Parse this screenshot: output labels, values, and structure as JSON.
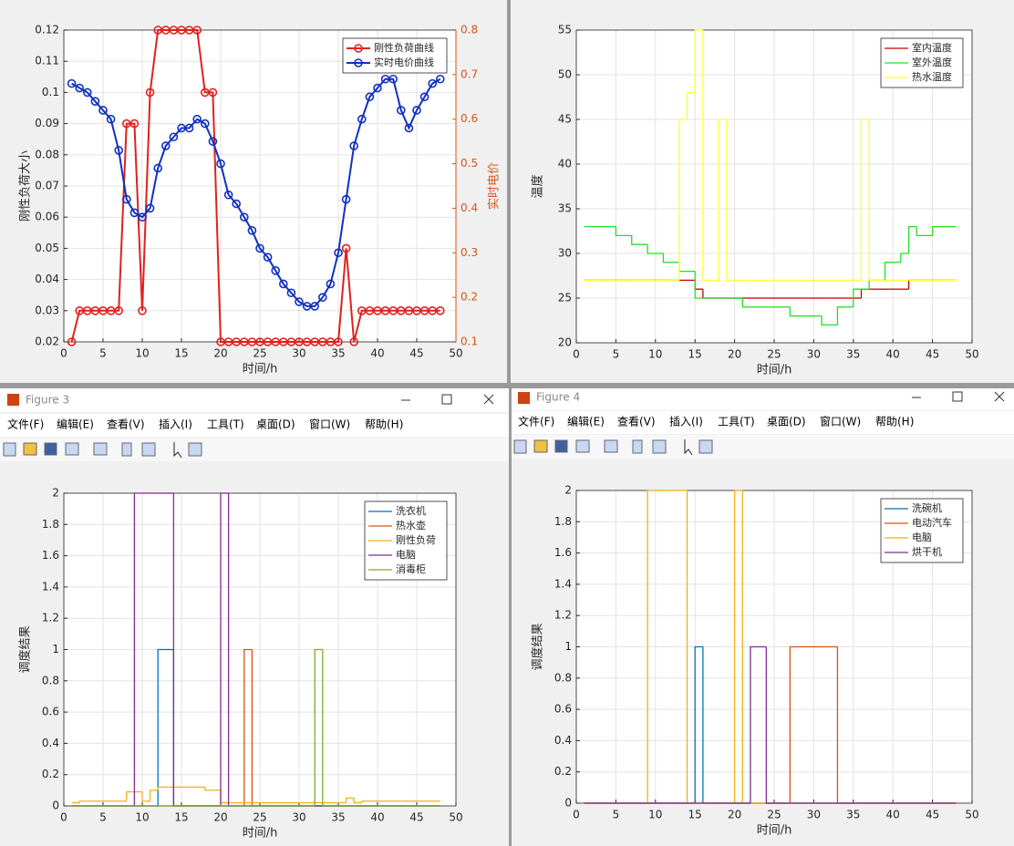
{
  "windows": [
    {
      "title": "Figure 3",
      "menu": [
        "文件(F)",
        "编辑(E)",
        "查看(V)",
        "插入(I)",
        "工具(T)",
        "桌面(D)",
        "窗口(W)",
        "帮助(H)"
      ]
    },
    {
      "title": "Figure 4",
      "menu": [
        "文件(F)",
        "编辑(E)",
        "查看(V)",
        "插入(I)",
        "工具(T)",
        "桌面(D)",
        "窗口(W)",
        "帮助(H)"
      ]
    }
  ],
  "chart_data": [
    {
      "type": "line",
      "marker": "o",
      "xlabel": "时间/h",
      "ylabel": "刚性负荷大小",
      "y2label": "实时电价",
      "y2color": "#d95319",
      "x": [
        1,
        2,
        3,
        4,
        5,
        6,
        7,
        8,
        9,
        10,
        11,
        12,
        13,
        14,
        15,
        16,
        17,
        18,
        19,
        20,
        21,
        22,
        23,
        24,
        25,
        26,
        27,
        28,
        29,
        30,
        31,
        32,
        33,
        34,
        35,
        36,
        37,
        38,
        39,
        40,
        41,
        42,
        43,
        44,
        45,
        46,
        47,
        48
      ],
      "xlim": [
        0,
        50
      ],
      "xticks": [
        0,
        5,
        10,
        15,
        20,
        25,
        30,
        35,
        40,
        45,
        50
      ],
      "ylim": [
        0.02,
        0.12
      ],
      "yticks": [
        0.02,
        0.03,
        0.04,
        0.05,
        0.06,
        0.07,
        0.08,
        0.09,
        0.1,
        0.11,
        0.12
      ],
      "y2lim": [
        0.1,
        0.8
      ],
      "y2ticks": [
        0.1,
        0.2,
        0.3,
        0.4,
        0.5,
        0.6,
        0.7,
        0.8
      ],
      "grid": true,
      "legend": "northeast",
      "series": [
        {
          "name": "刚性负荷曲线",
          "color": "#e02020",
          "values": [
            0.02,
            0.03,
            0.03,
            0.03,
            0.03,
            0.03,
            0.03,
            0.09,
            0.09,
            0.03,
            0.1,
            0.12,
            0.12,
            0.12,
            0.12,
            0.12,
            0.12,
            0.1,
            0.1,
            0.02,
            0.02,
            0.02,
            0.02,
            0.02,
            0.02,
            0.02,
            0.02,
            0.02,
            0.02,
            0.02,
            0.02,
            0.02,
            0.02,
            0.02,
            0.02,
            0.05,
            0.02,
            0.03,
            0.03,
            0.03,
            0.03,
            0.03,
            0.03,
            0.03,
            0.03,
            0.03,
            0.03,
            0.03
          ]
        },
        {
          "name": "实时电价曲线",
          "color": "#1030c0",
          "axis": "y2",
          "values": [
            0.68,
            0.67,
            0.66,
            0.64,
            0.62,
            0.6,
            0.53,
            0.42,
            0.39,
            0.38,
            0.4,
            0.49,
            0.54,
            0.56,
            0.58,
            0.58,
            0.6,
            0.59,
            0.55,
            0.5,
            0.43,
            0.41,
            0.38,
            0.35,
            0.31,
            0.29,
            0.26,
            0.23,
            0.21,
            0.19,
            0.18,
            0.18,
            0.2,
            0.23,
            0.3,
            0.42,
            0.54,
            0.6,
            0.65,
            0.67,
            0.69,
            0.69,
            0.62,
            0.58,
            0.62,
            0.65,
            0.68,
            0.69
          ]
        }
      ]
    },
    {
      "type": "line",
      "step": true,
      "xlabel": "时间/h",
      "ylabel": "温度",
      "x": [
        1,
        2,
        3,
        4,
        5,
        6,
        7,
        8,
        9,
        10,
        11,
        12,
        13,
        14,
        15,
        16,
        17,
        18,
        19,
        20,
        21,
        22,
        23,
        24,
        25,
        26,
        27,
        28,
        29,
        30,
        31,
        32,
        33,
        34,
        35,
        36,
        37,
        38,
        39,
        40,
        41,
        42,
        43,
        44,
        45,
        46,
        47,
        48
      ],
      "xlim": [
        0,
        50
      ],
      "xticks": [
        0,
        5,
        10,
        15,
        20,
        25,
        30,
        35,
        40,
        45,
        50
      ],
      "ylim": [
        20,
        55
      ],
      "yticks": [
        20,
        25,
        30,
        35,
        40,
        45,
        50,
        55
      ],
      "grid": true,
      "legend": "northeast",
      "series": [
        {
          "name": "室内温度",
          "color": "#cc0000",
          "values": [
            27,
            27,
            27,
            27,
            27,
            27,
            27,
            27,
            27,
            27,
            27,
            27,
            27,
            27,
            26,
            25,
            25,
            25,
            25,
            25,
            25,
            25,
            25,
            25,
            25,
            25,
            25,
            25,
            25,
            25,
            25,
            25,
            25,
            25,
            25,
            26,
            26,
            26,
            26,
            26,
            26,
            27,
            27,
            27,
            27,
            27,
            27,
            27
          ]
        },
        {
          "name": "室外温度",
          "color": "#22e022",
          "values": [
            33,
            33,
            33,
            33,
            32,
            32,
            31,
            31,
            30,
            30,
            29,
            29,
            28,
            28,
            25,
            25,
            25,
            25,
            25,
            25,
            24,
            24,
            24,
            24,
            24,
            24,
            23,
            23,
            23,
            23,
            22,
            22,
            24,
            24,
            26,
            26,
            27,
            27,
            29,
            29,
            30,
            33,
            32,
            32,
            33,
            33,
            33,
            33
          ]
        },
        {
          "name": "热水温度",
          "color": "#ffff30",
          "values": [
            27,
            27,
            27,
            27,
            27,
            27,
            27,
            27,
            27,
            27,
            27,
            27,
            45,
            48,
            55,
            27,
            27,
            45,
            27,
            27,
            27,
            27,
            27,
            27,
            27,
            27,
            27,
            27,
            27,
            27,
            27,
            27,
            27,
            27,
            27,
            45,
            27,
            27,
            27,
            27,
            27,
            27,
            27,
            27,
            27,
            27,
            27,
            27
          ]
        }
      ]
    },
    {
      "type": "line",
      "step": true,
      "xlabel": "时间/h",
      "ylabel": "调度结果",
      "x": [
        1,
        2,
        3,
        4,
        5,
        6,
        7,
        8,
        9,
        10,
        11,
        12,
        13,
        14,
        15,
        16,
        17,
        18,
        19,
        20,
        21,
        22,
        23,
        24,
        25,
        26,
        27,
        28,
        29,
        30,
        31,
        32,
        33,
        34,
        35,
        36,
        37,
        38,
        39,
        40,
        41,
        42,
        43,
        44,
        45,
        46,
        47,
        48
      ],
      "xlim": [
        0,
        50
      ],
      "xticks": [
        0,
        5,
        10,
        15,
        20,
        25,
        30,
        35,
        40,
        45,
        50
      ],
      "ylim": [
        0,
        2
      ],
      "yticks": [
        0,
        0.2,
        0.4,
        0.6,
        0.8,
        1,
        1.2,
        1.4,
        1.6,
        1.8,
        2
      ],
      "grid": true,
      "legend": "northeast",
      "series": [
        {
          "name": "洗衣机",
          "color": "#0072bd",
          "values": [
            0,
            0,
            0,
            0,
            0,
            0,
            0,
            0,
            0,
            0,
            0,
            1,
            1,
            0,
            0,
            0,
            0,
            0,
            0,
            0,
            0,
            0,
            0,
            0,
            0,
            0,
            0,
            0,
            0,
            0,
            0,
            0,
            0,
            0,
            0,
            0,
            0,
            0,
            0,
            0,
            0,
            0,
            0,
            0,
            0,
            0,
            0,
            0
          ]
        },
        {
          "name": "热水壶",
          "color": "#d95319",
          "values": [
            0,
            0,
            0,
            0,
            0,
            0,
            0,
            0,
            0,
            0,
            0,
            0,
            0,
            0,
            0,
            0,
            0,
            0,
            0,
            0,
            0,
            0,
            1,
            0,
            0,
            0,
            0,
            0,
            0,
            0,
            0,
            0,
            0,
            0,
            0,
            0,
            0,
            0,
            0,
            0,
            0,
            0,
            0,
            0,
            0,
            0,
            0,
            0
          ]
        },
        {
          "name": "刚性负荷",
          "color": "#edb120",
          "values": [
            0.02,
            0.03,
            0.03,
            0.03,
            0.03,
            0.03,
            0.03,
            0.09,
            0.09,
            0.03,
            0.1,
            0.12,
            0.12,
            0.12,
            0.12,
            0.12,
            0.12,
            0.1,
            0.1,
            0.02,
            0.02,
            0.02,
            0.02,
            0.02,
            0.02,
            0.02,
            0.02,
            0.02,
            0.02,
            0.02,
            0.02,
            0.02,
            0.02,
            0.02,
            0.02,
            0.05,
            0.02,
            0.03,
            0.03,
            0.03,
            0.03,
            0.03,
            0.03,
            0.03,
            0.03,
            0.03,
            0.03,
            0.03
          ]
        },
        {
          "name": "电脑",
          "color": "#7e2f8e",
          "values": [
            0,
            0,
            0,
            0,
            0,
            0,
            0,
            0,
            2,
            2,
            2,
            2,
            2,
            0,
            0,
            0,
            0,
            0,
            0,
            2,
            0,
            0,
            0,
            0,
            0,
            0,
            0,
            0,
            0,
            0,
            0,
            0,
            0,
            0,
            0,
            0,
            0,
            0,
            0,
            0,
            0,
            0,
            0,
            0,
            0,
            0,
            0,
            0
          ]
        },
        {
          "name": "消毒柜",
          "color": "#77ac30",
          "values": [
            0,
            0,
            0,
            0,
            0,
            0,
            0,
            0,
            0,
            0,
            0,
            0,
            0,
            0,
            0,
            0,
            0,
            0,
            0,
            0,
            0,
            0,
            0,
            0,
            0,
            0,
            0,
            0,
            0,
            0,
            0,
            1,
            0,
            0,
            0,
            0,
            0,
            0,
            0,
            0,
            0,
            0,
            0,
            0,
            0,
            0,
            0,
            0
          ]
        }
      ]
    },
    {
      "type": "line",
      "step": true,
      "xlabel": "时间/h",
      "ylabel": "调度结果",
      "x": [
        1,
        2,
        3,
        4,
        5,
        6,
        7,
        8,
        9,
        10,
        11,
        12,
        13,
        14,
        15,
        16,
        17,
        18,
        19,
        20,
        21,
        22,
        23,
        24,
        25,
        26,
        27,
        28,
        29,
        30,
        31,
        32,
        33,
        34,
        35,
        36,
        37,
        38,
        39,
        40,
        41,
        42,
        43,
        44,
        45,
        46,
        47,
        48
      ],
      "xlim": [
        0,
        50
      ],
      "xticks": [
        0,
        5,
        10,
        15,
        20,
        25,
        30,
        35,
        40,
        45,
        50
      ],
      "ylim": [
        0,
        2
      ],
      "yticks": [
        0,
        0.2,
        0.4,
        0.6,
        0.8,
        1,
        1.2,
        1.4,
        1.6,
        1.8,
        2
      ],
      "grid": true,
      "legend": "northeast",
      "series": [
        {
          "name": "洗碗机",
          "color": "#0072bd",
          "values": [
            0,
            0,
            0,
            0,
            0,
            0,
            0,
            0,
            0,
            0,
            0,
            0,
            0,
            0,
            1,
            0,
            0,
            0,
            0,
            0,
            0,
            0,
            0,
            0,
            0,
            0,
            0,
            0,
            0,
            0,
            0,
            0,
            0,
            0,
            0,
            0,
            0,
            0,
            0,
            0,
            0,
            0,
            0,
            0,
            0,
            0,
            0,
            0
          ]
        },
        {
          "name": "电动汽车",
          "color": "#d95319",
          "values": [
            0,
            0,
            0,
            0,
            0,
            0,
            0,
            0,
            0,
            0,
            0,
            0,
            0,
            0,
            0,
            0,
            0,
            0,
            0,
            0,
            0,
            0,
            0,
            0,
            0,
            0,
            1,
            1,
            1,
            1,
            1,
            1,
            0,
            0,
            0,
            0,
            0,
            0,
            0,
            0,
            0,
            0,
            0,
            0,
            0,
            0,
            0,
            0
          ]
        },
        {
          "name": "电脑",
          "color": "#edb120",
          "values": [
            0,
            0,
            0,
            0,
            0,
            0,
            0,
            0,
            2,
            2,
            2,
            2,
            2,
            0,
            0,
            0,
            0,
            0,
            0,
            2,
            0,
            0,
            0,
            0,
            0,
            0,
            0,
            0,
            0,
            0,
            0,
            0,
            0,
            0,
            0,
            0,
            0,
            0,
            0,
            0,
            0,
            0,
            0,
            0,
            0,
            0,
            0,
            0
          ]
        },
        {
          "name": "烘干机",
          "color": "#7e2f8e",
          "values": [
            0,
            0,
            0,
            0,
            0,
            0,
            0,
            0,
            0,
            0,
            0,
            0,
            0,
            0,
            0,
            0,
            0,
            0,
            0,
            0,
            0,
            1,
            1,
            0,
            0,
            0,
            0,
            0,
            0,
            0,
            0,
            0,
            0,
            0,
            0,
            0,
            0,
            0,
            0,
            0,
            0,
            0,
            0,
            0,
            0,
            0,
            0,
            0
          ]
        }
      ]
    }
  ]
}
